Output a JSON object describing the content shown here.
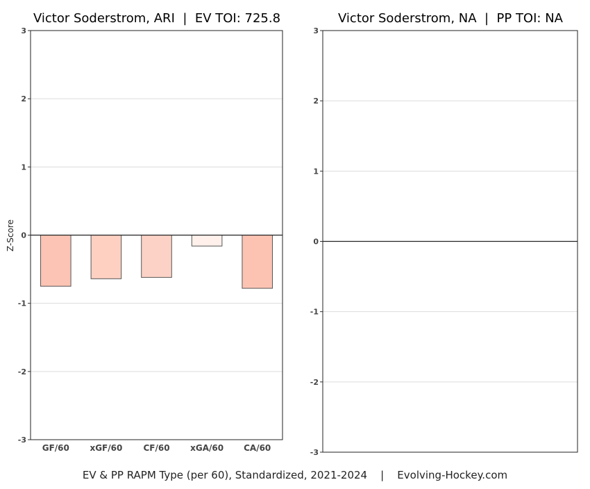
{
  "chart_data": [
    {
      "type": "bar",
      "title": "Victor Soderstrom, ARI  |  EV TOI: 725.8",
      "ylabel": "Z-Score",
      "xlabel": "",
      "ylim": [
        -3,
        3
      ],
      "yticks": [
        "3",
        "2",
        "1",
        "0",
        "-1",
        "-2",
        "-3"
      ],
      "grid": true,
      "categories": [
        "GF/60",
        "xGF/60",
        "CF/60",
        "xGA/60",
        "CA/60"
      ],
      "values": [
        -0.75,
        -0.64,
        -0.62,
        -0.16,
        -0.78
      ],
      "colors": [
        "#fcc4b4",
        "#fdd0c2",
        "#fdd2c6",
        "#fff0eb",
        "#fcc3b3"
      ]
    },
    {
      "type": "bar",
      "title": "Victor Soderstrom, NA  |  PP TOI: NA",
      "ylabel": "",
      "xlabel": "",
      "ylim": [
        -3,
        3
      ],
      "yticks": [
        "3",
        "2",
        "1",
        "0",
        "-1",
        "-2",
        "-3"
      ],
      "grid": true,
      "categories": [],
      "values": [],
      "colors": []
    }
  ],
  "footer": "EV & PP RAPM Type (per 60), Standardized, 2021-2024    |    Evolving-Hockey.com"
}
